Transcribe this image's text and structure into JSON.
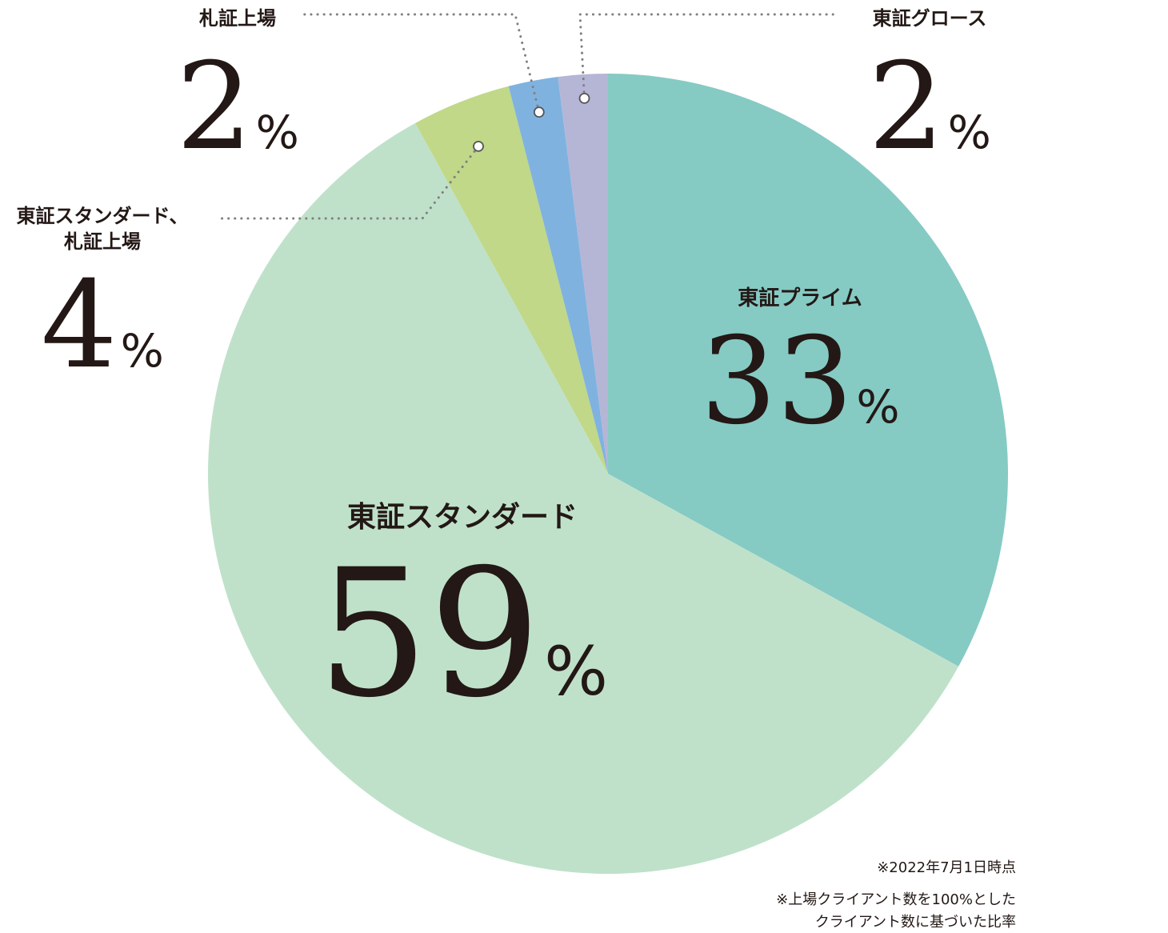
{
  "chart_data": {
    "type": "pie",
    "unit": "%",
    "start_angle_deg": 0,
    "direction": "clockwise",
    "categories": [
      "東証プライム",
      "東証スタンダード",
      "東証スタンダード、札証上場",
      "札証上場",
      "東証グロース"
    ],
    "values": [
      33,
      59,
      4,
      2,
      2
    ],
    "colors": [
      "#86cac4",
      "#bfe1ca",
      "#c0d888",
      "#80b2e0",
      "#b5b5d6"
    ],
    "label_lines": [
      [
        "東証プライム"
      ],
      [
        "東証スタンダード"
      ],
      [
        "東証スタンダード、",
        "札証上場"
      ],
      [
        "札証上場"
      ],
      [
        "東証グロース"
      ]
    ]
  },
  "notes": {
    "date": "※2022年7月1日時点",
    "basis_line1": "※上場クライアント数を100%とした",
    "basis_line2": "クライアント数に基づいた比率"
  }
}
